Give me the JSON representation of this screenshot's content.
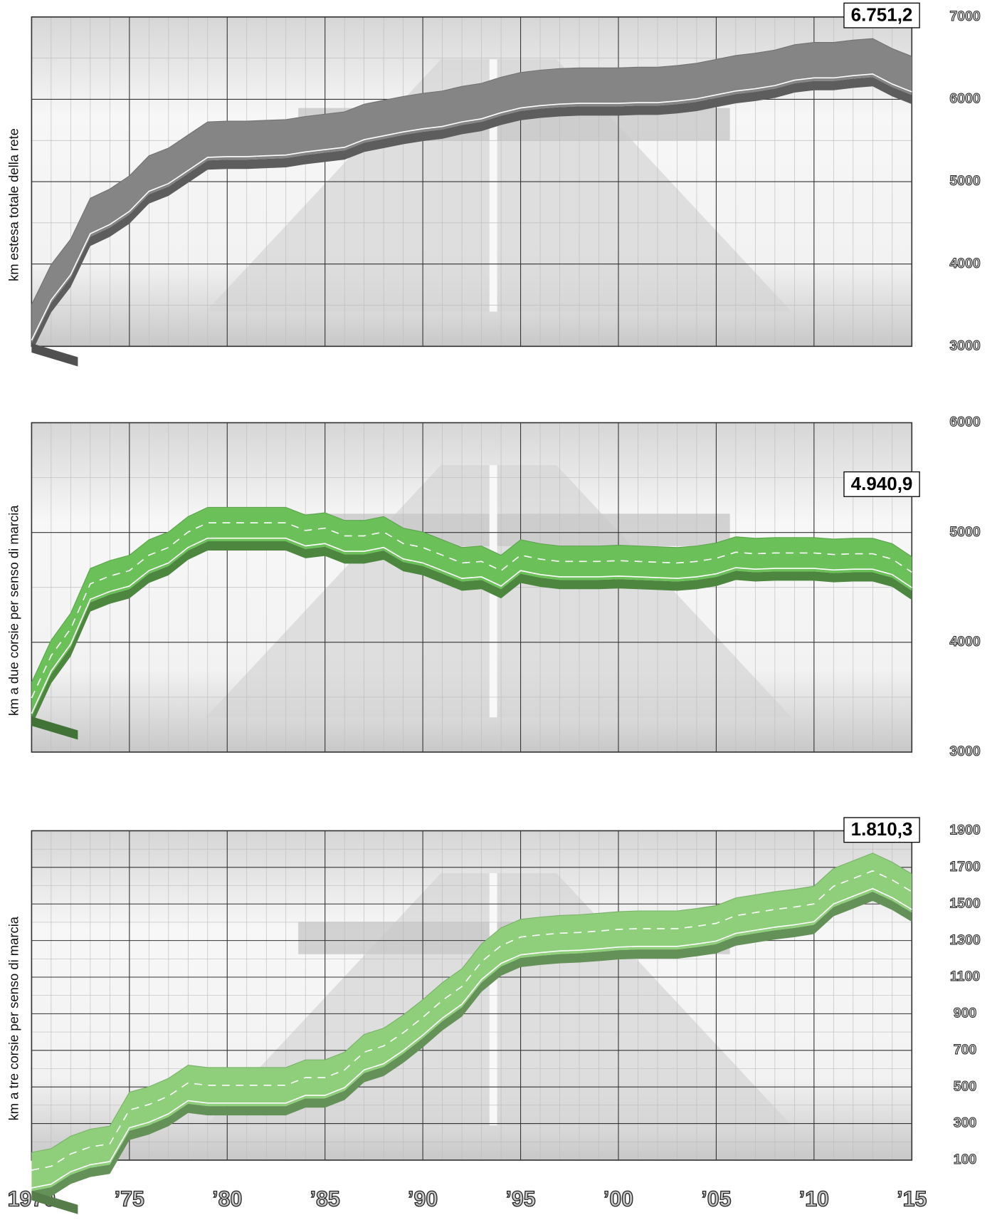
{
  "chart_data": [
    {
      "type": "line",
      "y_label": "km   estesa   totale  della  rete",
      "annotation": "6.751,2",
      "xlim": [
        1970,
        2015
      ],
      "xticks": [
        1970,
        1975,
        1980,
        1985,
        1990,
        1995,
        2000,
        2005,
        2010,
        2015
      ],
      "ylim": [
        3000,
        7000
      ],
      "yticks": [
        3000,
        4000,
        5000,
        6000,
        7000
      ],
      "grid": true,
      "x": [
        1970,
        1971,
        1972,
        1973,
        1974,
        1975,
        1976,
        1977,
        1978,
        1979,
        1980,
        1981,
        1982,
        1983,
        1984,
        1985,
        1986,
        1987,
        1988,
        1989,
        1990,
        1991,
        1992,
        1993,
        1994,
        1995,
        1996,
        1997,
        1998,
        1999,
        2000,
        2001,
        2002,
        2003,
        2004,
        2005,
        2006,
        2007,
        2008,
        2009,
        2010,
        2011,
        2012,
        2013,
        2014,
        2015
      ],
      "series": [
        {
          "color": "#858585",
          "values": [
            3506,
            3993,
            4302,
            4799,
            4911,
            5070,
            5314,
            5408,
            5567,
            5726,
            5735,
            5735,
            5745,
            5754,
            5792,
            5820,
            5848,
            5941,
            5988,
            6035,
            6073,
            6101,
            6157,
            6194,
            6269,
            6326,
            6354,
            6373,
            6382,
            6382,
            6382,
            6391,
            6391,
            6410,
            6438,
            6485,
            6532,
            6560,
            6598,
            6663,
            6691,
            6691,
            6719,
            6738,
            6616,
            6522
          ]
        }
      ]
    },
    {
      "type": "line",
      "y_label": "km   a  due  corsie  per  senso  di  marcia",
      "annotation": "4.940,9",
      "xlim": [
        1970,
        2015
      ],
      "xticks": [
        1970,
        1975,
        1980,
        1985,
        1990,
        1995,
        2000,
        2005,
        2010,
        2015
      ],
      "ylim": [
        3000,
        6000
      ],
      "yticks": [
        3000,
        4000,
        5000,
        6000
      ],
      "grid": true,
      "x": [
        1970,
        1971,
        1972,
        1973,
        1974,
        1975,
        1976,
        1977,
        1978,
        1979,
        1980,
        1981,
        1982,
        1983,
        1984,
        1985,
        1986,
        1987,
        1988,
        1989,
        1990,
        1991,
        1992,
        1993,
        1994,
        1995,
        1996,
        1997,
        1998,
        1999,
        2000,
        2001,
        2002,
        2003,
        2004,
        2005,
        2006,
        2007,
        2008,
        2009,
        2010,
        2011,
        2012,
        2013,
        2014,
        2015
      ],
      "series": [
        {
          "color": "#6cc05a",
          "values": [
            3633,
            4019,
            4265,
            4673,
            4744,
            4793,
            4934,
            5004,
            5145,
            5229,
            5229,
            5229,
            5229,
            5229,
            5159,
            5180,
            5110,
            5110,
            5145,
            5040,
            5004,
            4934,
            4863,
            4877,
            4793,
            4934,
            4898,
            4877,
            4877,
            4877,
            4884,
            4877,
            4870,
            4863,
            4877,
            4905,
            4961,
            4947,
            4954,
            4954,
            4954,
            4940,
            4947,
            4947,
            4898,
            4779
          ]
        }
      ]
    },
    {
      "type": "line",
      "y_label": "km   a  tre  corsie  per  senso  di  marcia",
      "annotation": "1.810,3",
      "xlim": [
        1970,
        2015
      ],
      "xticks": [
        {
          "value": 1970,
          "label": "1970"
        },
        {
          "value": 1975,
          "label": "’75"
        },
        {
          "value": 1980,
          "label": "’80"
        },
        {
          "value": 1985,
          "label": "’85"
        },
        {
          "value": 1990,
          "label": "’90"
        },
        {
          "value": 1995,
          "label": "’95"
        },
        {
          "value": 2000,
          "label": "’00"
        },
        {
          "value": 2005,
          "label": "’05"
        },
        {
          "value": 2010,
          "label": "’10"
        },
        {
          "value": 2015,
          "label": "’15"
        }
      ],
      "ylim": [
        100,
        1900
      ],
      "yticks": [
        100,
        300,
        500,
        700,
        900,
        1100,
        1300,
        1500,
        1700,
        1900
      ],
      "grid": true,
      "x": [
        1970,
        1971,
        1972,
        1973,
        1974,
        1975,
        1976,
        1977,
        1978,
        1979,
        1980,
        1981,
        1982,
        1983,
        1984,
        1985,
        1986,
        1987,
        1988,
        1989,
        1990,
        1991,
        1992,
        1993,
        1994,
        1995,
        1996,
        1997,
        1998,
        1999,
        2000,
        2001,
        2002,
        2003,
        2004,
        2005,
        2006,
        2007,
        2008,
        2009,
        2010,
        2011,
        2012,
        2013,
        2014,
        2015
      ],
      "series": [
        {
          "color": "#8fcf7c",
          "values": [
            142,
            163,
            231,
            269,
            286,
            471,
            501,
            547,
            619,
            606,
            606,
            606,
            606,
            606,
            648,
            648,
            690,
            787,
            821,
            893,
            977,
            1070,
            1146,
            1281,
            1369,
            1416,
            1428,
            1437,
            1441,
            1449,
            1458,
            1462,
            1462,
            1462,
            1475,
            1491,
            1533,
            1550,
            1567,
            1580,
            1597,
            1694,
            1736,
            1778,
            1728,
            1664
          ]
        }
      ]
    }
  ]
}
